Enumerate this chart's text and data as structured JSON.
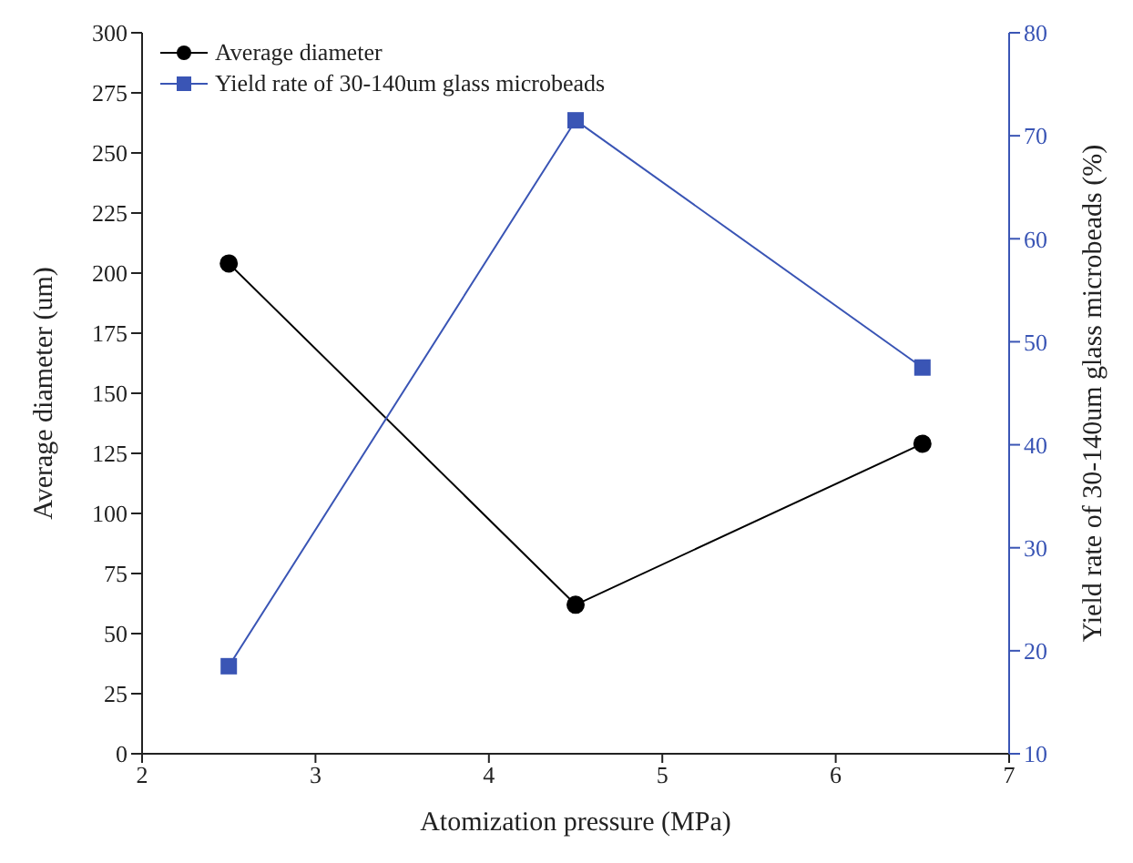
{
  "chart_data": {
    "type": "line",
    "xlabel": "Atomization pressure (MPa)",
    "ylabel": "Average diameter (um)",
    "y2label": "Yield rate of 30-140um glass microbeads (%)",
    "x": [
      2.5,
      4.5,
      6.5
    ],
    "series": [
      {
        "name": "Average diameter",
        "color": "#000000",
        "values": [
          204,
          62,
          129
        ],
        "marker": "circle"
      },
      {
        "name": "Yield rate of 30-140um glass microbeads",
        "color": "#3a55b5",
        "values": [
          18.5,
          71.5,
          47.5
        ],
        "marker": "square",
        "axis": "y2"
      }
    ],
    "xlim": [
      2,
      7
    ],
    "xticks": [
      2,
      3,
      4,
      5,
      6,
      7
    ],
    "ylim": [
      0,
      300
    ],
    "yticks": [
      0,
      25,
      50,
      75,
      100,
      125,
      150,
      175,
      200,
      225,
      250,
      275,
      300
    ],
    "y2lim": [
      10,
      80
    ],
    "y2ticks": [
      10,
      20,
      30,
      40,
      50,
      60,
      70,
      80
    ],
    "legend": "top left",
    "grid": false,
    "line_style": "solid"
  }
}
